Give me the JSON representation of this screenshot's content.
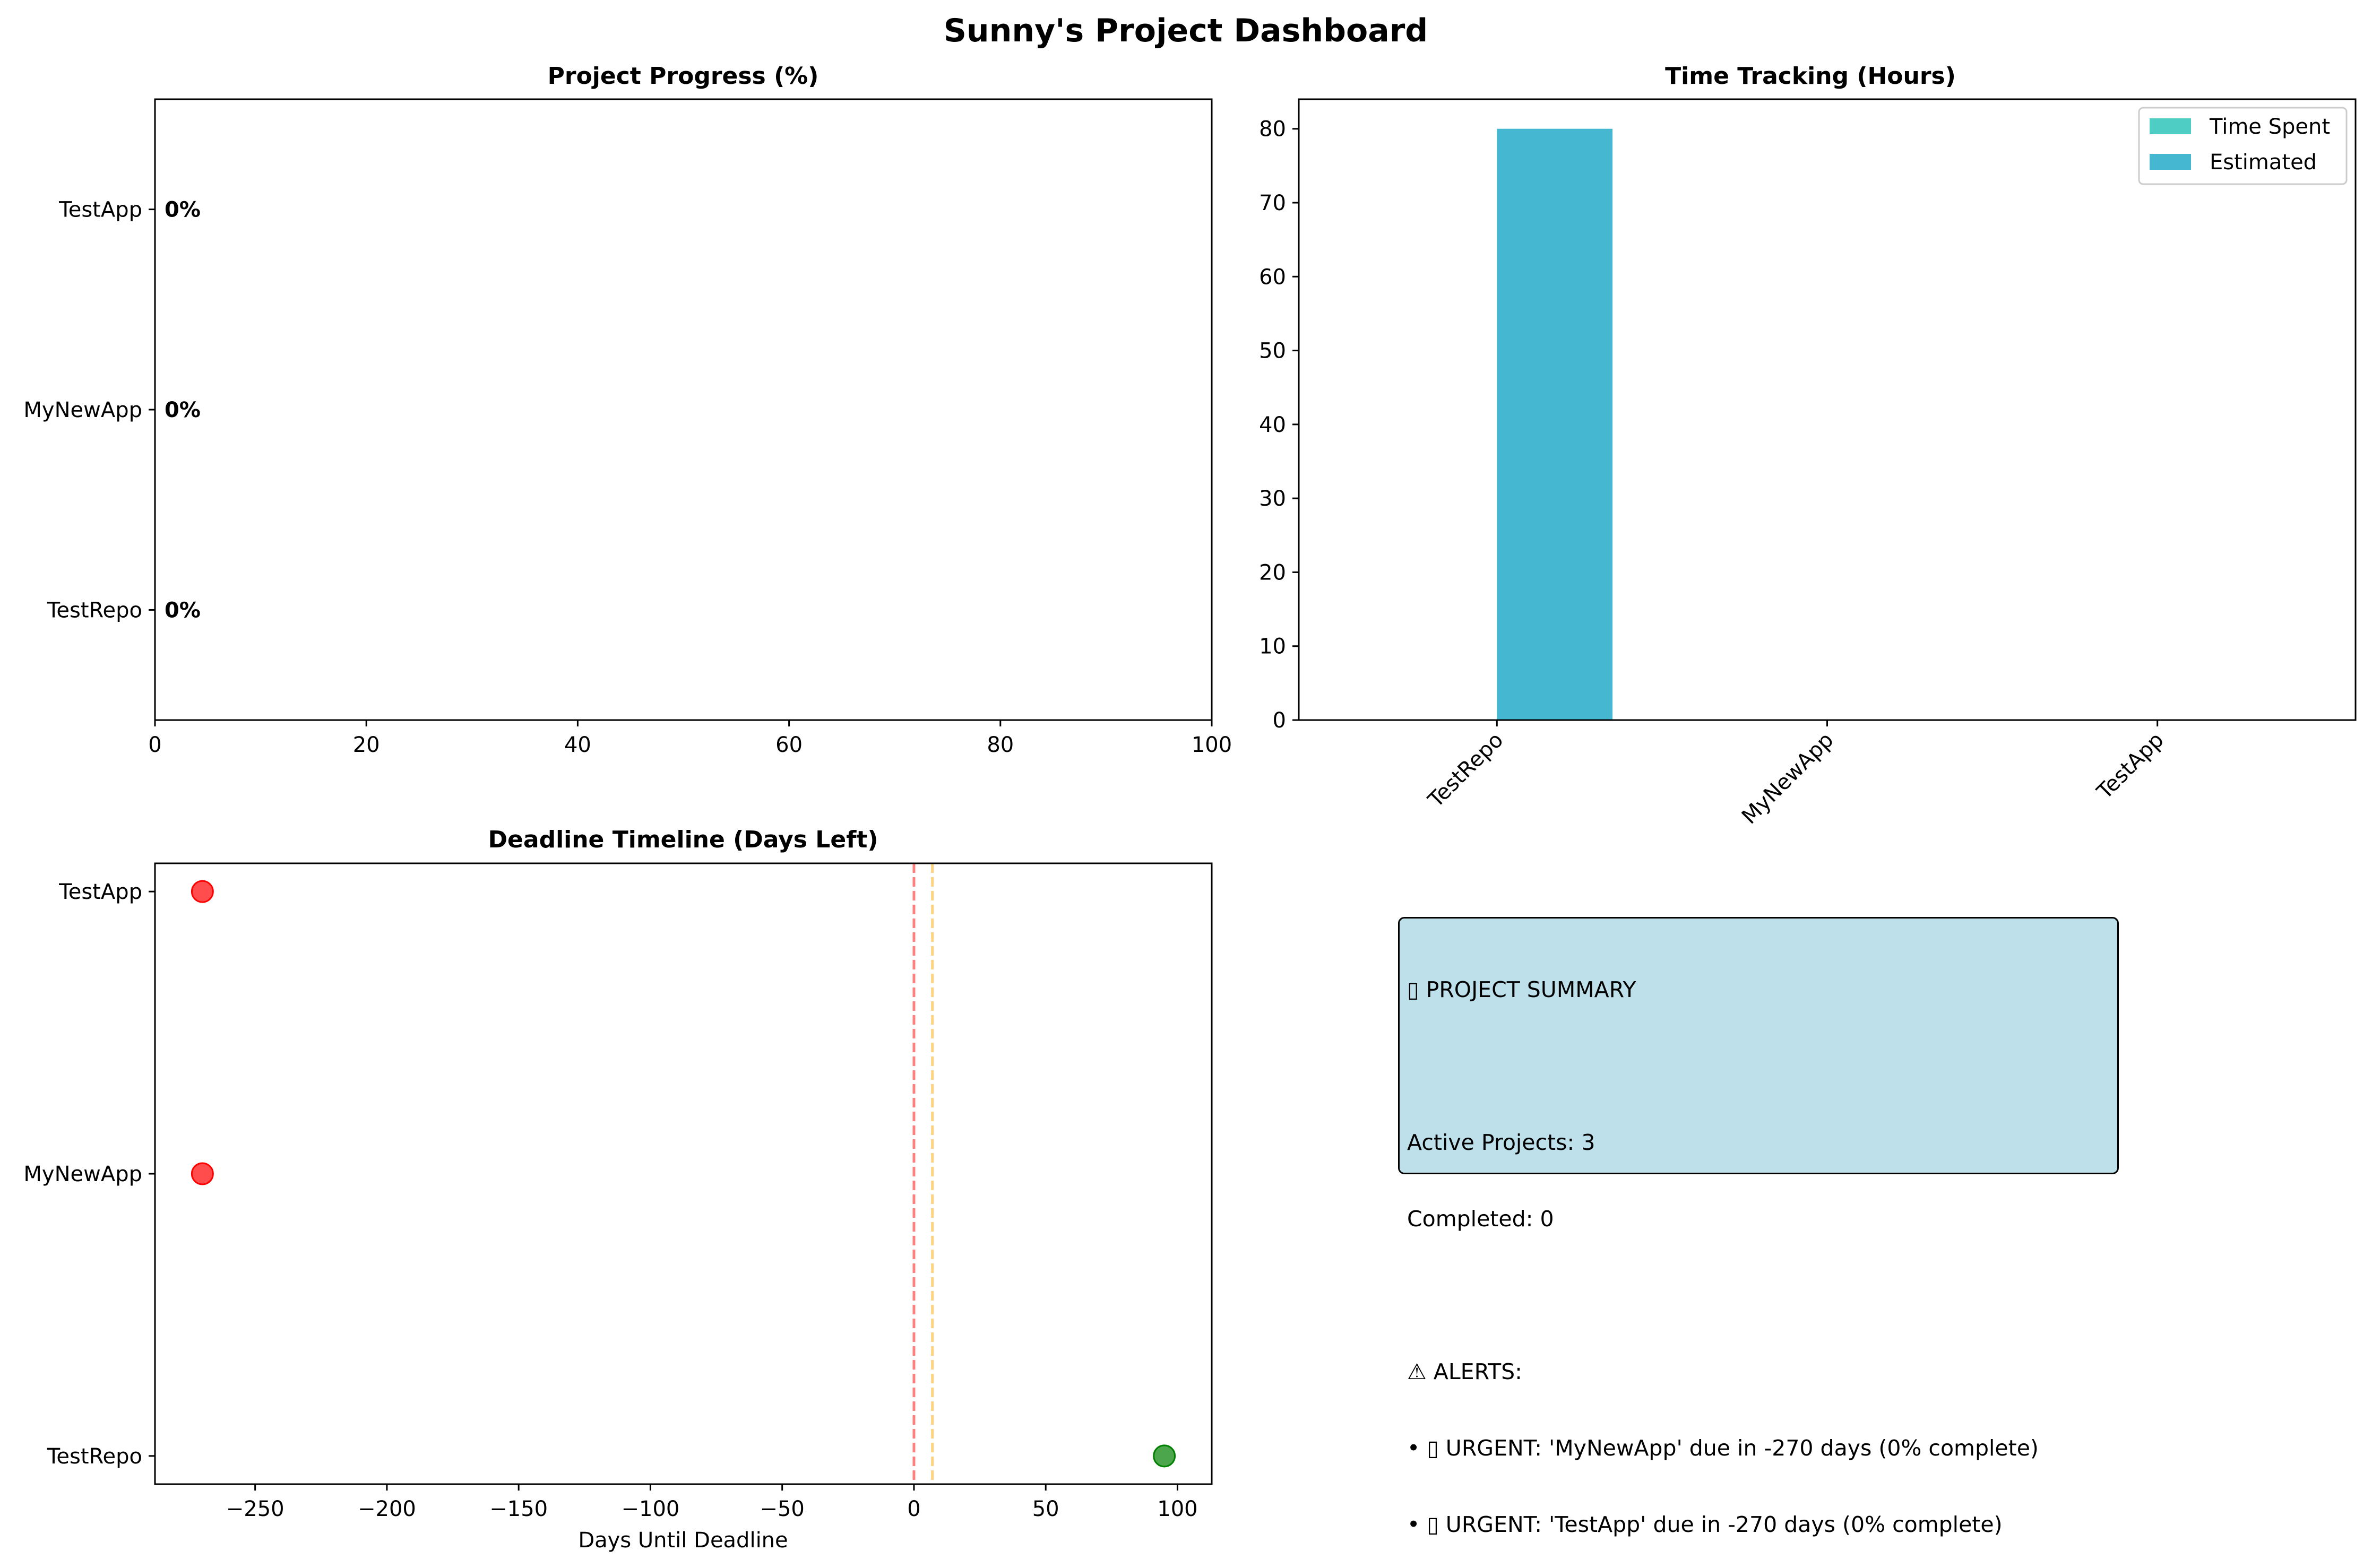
{
  "figure": {
    "title": "Sunny's Project Dashboard"
  },
  "chart_data": [
    {
      "type": "bar",
      "orientation": "horizontal",
      "title": "Project Progress (%)",
      "categories": [
        "TestRepo",
        "MyNewApp",
        "TestApp"
      ],
      "values": [
        0,
        0,
        0
      ],
      "data_labels": [
        "0%",
        "0%",
        "0%"
      ],
      "xlim": [
        0,
        100
      ],
      "xticks": [
        "0",
        "20",
        "40",
        "60",
        "80",
        "100"
      ],
      "xlabel": "",
      "ylabel": ""
    },
    {
      "type": "bar",
      "title": "Time Tracking (Hours)",
      "categories": [
        "TestRepo",
        "MyNewApp",
        "TestApp"
      ],
      "series": [
        {
          "name": "Time Spent",
          "values": [
            0,
            0,
            0
          ],
          "color": "#4ecdc4"
        },
        {
          "name": "Estimated",
          "values": [
            80,
            0,
            0
          ],
          "color": "#45b7d1"
        }
      ],
      "ylim": [
        0,
        84
      ],
      "yticks": [
        "0",
        "10",
        "20",
        "30",
        "40",
        "50",
        "60",
        "70",
        "80"
      ],
      "legend": "top-right",
      "xlabel": "",
      "ylabel": ""
    },
    {
      "type": "scatter",
      "title": "Deadline Timeline (Days Left)",
      "categories": [
        "TestRepo",
        "MyNewApp",
        "TestApp"
      ],
      "points": [
        {
          "category": "TestRepo",
          "x": 95,
          "color": "#008000"
        },
        {
          "category": "MyNewApp",
          "x": -270,
          "color": "#ff0000"
        },
        {
          "category": "TestApp",
          "x": -270,
          "color": "#ff0000"
        }
      ],
      "reference_lines": [
        {
          "x": 0,
          "color": "#ff0000"
        },
        {
          "x": 7,
          "color": "#ffa500"
        }
      ],
      "xlim": [
        -288,
        113
      ],
      "xticks": [
        "−250",
        "−200",
        "−150",
        "−100",
        "−50",
        "0",
        "50",
        "100"
      ],
      "xlabel": "Days Until Deadline",
      "ylabel": ""
    }
  ],
  "summary": {
    "heading": "▯ PROJECT SUMMARY",
    "active": "Active Projects: 3",
    "completed": "Completed: 0",
    "alerts_heading": "⚠ ALERTS:",
    "alerts": [
      "• ▯ URGENT: 'MyNewApp' due in -270 days (0% complete)",
      "• ▯ URGENT: 'TestApp' due in -270 days (0% complete)"
    ]
  }
}
